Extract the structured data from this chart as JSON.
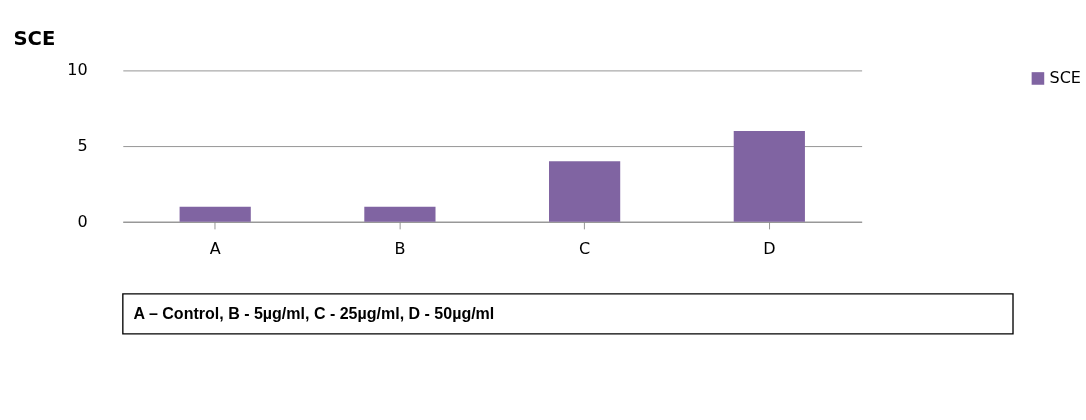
{
  "chart_data": {
    "type": "bar",
    "title": "SCE",
    "categories": [
      "A",
      "B",
      "C",
      "D"
    ],
    "series": [
      {
        "name": "SCE",
        "color": "#8064a2",
        "values": [
          1,
          1,
          4,
          6
        ]
      }
    ],
    "ylim": [
      0,
      10
    ],
    "yticks": [
      0,
      5,
      10
    ],
    "grid": "y",
    "legend": "right",
    "annotations": [
      "A – Control,            B - 5µg/ml,            C - 25µg/ml,          D - 50µg/ml"
    ]
  }
}
